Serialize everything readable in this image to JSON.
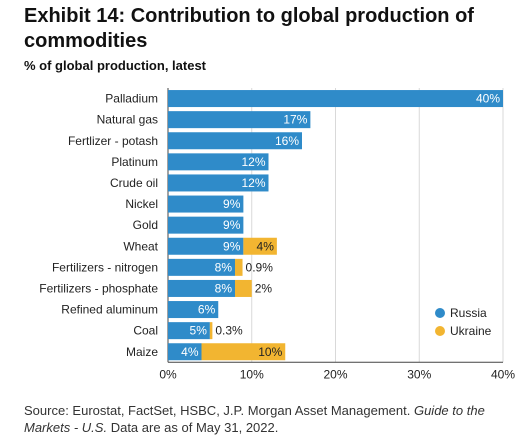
{
  "header": {
    "title": "Exhibit 14: Contribution to global production of commodities",
    "subtitle": "% of global production, latest"
  },
  "footer": {
    "source_prefix": "Source: Eurostat, FactSet, HSBC, J.P. Morgan Asset Management.",
    "source_italic": "Guide to the Markets - U.S.",
    "source_suffix": "Data are as of May 31, 2022."
  },
  "colors": {
    "russia": "#2f8bc9",
    "ukraine": "#f2b531",
    "grid": "#d9d9d9",
    "axis": "#444444"
  },
  "chart_data": {
    "type": "bar",
    "orientation": "horizontal",
    "stacked": true,
    "categories": [
      "Palladium",
      "Natural gas",
      "Fertlizer - potash",
      "Platinum",
      "Crude oil",
      "Nickel",
      "Gold",
      "Wheat",
      "Fertilizers - nitrogen",
      "Fertilizers - phosphate",
      "Refined aluminum",
      "Coal",
      "Maize"
    ],
    "series": [
      {
        "name": "Russia",
        "values": [
          40,
          17,
          16,
          12,
          12,
          9,
          9,
          9,
          8,
          8,
          6,
          5,
          4
        ],
        "labels": [
          "40%",
          "17%",
          "16%",
          "12%",
          "12%",
          "9%",
          "9%",
          "9%",
          "8%",
          "8%",
          "6%",
          "5%",
          "4%"
        ]
      },
      {
        "name": "Ukraine",
        "values": [
          null,
          null,
          null,
          null,
          null,
          null,
          null,
          4,
          0.9,
          2,
          null,
          0.3,
          10
        ],
        "labels": [
          null,
          null,
          null,
          null,
          null,
          null,
          null,
          "4%",
          "0.9%",
          "2%",
          null,
          "0.3%",
          "10%"
        ]
      }
    ],
    "xlim": [
      0,
      40
    ],
    "xticks": [
      0,
      10,
      20,
      30,
      40
    ],
    "xtick_labels": [
      "0%",
      "10%",
      "20%",
      "30%",
      "40%"
    ],
    "grid": true,
    "legend_position": "bottom-right"
  }
}
